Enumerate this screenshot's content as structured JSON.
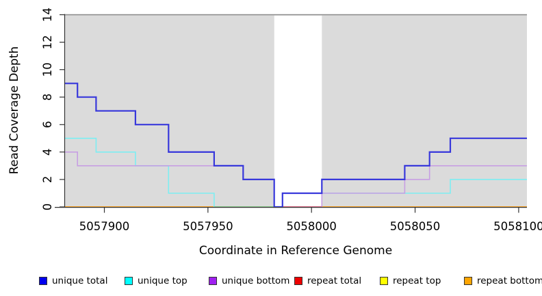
{
  "figure": {
    "x_axis_title": "Coordinate in Reference Genome",
    "y_axis_title": "Read Coverage Depth"
  },
  "chart_data": {
    "type": "line",
    "subtype": "step",
    "title": "",
    "xlabel": "Coordinate in Reference Genome",
    "ylabel": "Read Coverage Depth",
    "xlim": [
      5057881,
      5058104
    ],
    "ylim": [
      0,
      14
    ],
    "x_ticks": [
      5057900,
      5057950,
      5058000,
      5058050,
      5058100
    ],
    "y_ticks": [
      0,
      2,
      4,
      6,
      8,
      10,
      12,
      14
    ],
    "grid": false,
    "legend_position": "bottom",
    "background": {
      "plot_fill": "#dbdbdb",
      "repeat_region_fill": "#ffffff",
      "repeat_region_x": [
        5057982,
        5058005
      ]
    },
    "series": [
      {
        "name": "unique total",
        "line_color": "#3838db",
        "swatch_color": "#0000ee",
        "line_width": 2.2,
        "points": [
          [
            5057881,
            9
          ],
          [
            5057887,
            8
          ],
          [
            5057896,
            7
          ],
          [
            5057915,
            6
          ],
          [
            5057931,
            4
          ],
          [
            5057953,
            3
          ],
          [
            5057967,
            2
          ],
          [
            5057982,
            0
          ],
          [
            5057986,
            1
          ],
          [
            5058005,
            2
          ],
          [
            5058045,
            3
          ],
          [
            5058057,
            4
          ],
          [
            5058067,
            5
          ],
          [
            5058104,
            5
          ]
        ]
      },
      {
        "name": "unique top",
        "line_color": "#7deef2",
        "swatch_color": "#00ffff",
        "line_width": 1.6,
        "points": [
          [
            5057881,
            5
          ],
          [
            5057896,
            4
          ],
          [
            5057915,
            3
          ],
          [
            5057931,
            1
          ],
          [
            5057953,
            0
          ],
          [
            5057986,
            1
          ],
          [
            5058067,
            2
          ],
          [
            5058104,
            2
          ]
        ]
      },
      {
        "name": "unique bottom",
        "line_color": "#c79fe3",
        "swatch_color": "#a020f0",
        "line_width": 1.6,
        "points": [
          [
            5057881,
            4
          ],
          [
            5057887,
            3
          ],
          [
            5057967,
            2
          ],
          [
            5057982,
            0
          ],
          [
            5058005,
            1
          ],
          [
            5058045,
            2
          ],
          [
            5058057,
            3
          ],
          [
            5058104,
            3
          ]
        ]
      },
      {
        "name": "repeat total",
        "line_color": "#dd2222",
        "swatch_color": "#ee0000",
        "line_width": 1.6,
        "points": [
          [
            5057881,
            0
          ],
          [
            5058104,
            0
          ]
        ]
      },
      {
        "name": "repeat top",
        "line_color": "#ffff33",
        "swatch_color": "#ffff00",
        "line_width": 1.6,
        "points": [
          [
            5057881,
            0
          ],
          [
            5058104,
            0
          ]
        ]
      },
      {
        "name": "repeat bottom",
        "line_color": "#ff9d1c",
        "swatch_color": "#ffa500",
        "line_width": 1.6,
        "points": [
          [
            5057881,
            0
          ],
          [
            5058104,
            0
          ]
        ]
      }
    ],
    "overlap_blend_segments": [
      {
        "y": 0,
        "x": [
          5057953,
          5057982
        ],
        "color": "#86c98b"
      },
      {
        "y": 0,
        "x": [
          5057982,
          5058005
        ],
        "color": "#dc6486"
      }
    ]
  }
}
